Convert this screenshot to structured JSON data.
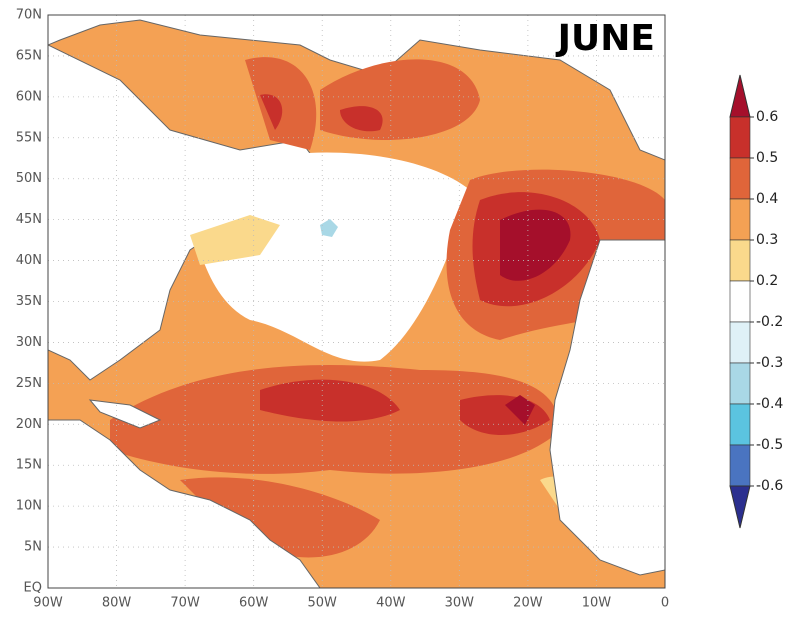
{
  "title": "JUNE",
  "lat_labels": [
    "70N",
    "65N",
    "60N",
    "55N",
    "50N",
    "45N",
    "40N",
    "35N",
    "30N",
    "25N",
    "20N",
    "15N",
    "10N",
    "5N",
    "EQ"
  ],
  "lon_labels": [
    "90W",
    "80W",
    "70W",
    "60W",
    "50W",
    "40W",
    "30W",
    "20W",
    "10W",
    "0"
  ],
  "colorbar": {
    "levels": [
      0.6,
      0.5,
      0.4,
      0.3,
      0.2,
      -0.2,
      -0.3,
      -0.4,
      -0.5,
      -0.6
    ],
    "colors": [
      "#a50f2b",
      "#c8302b",
      "#e0653a",
      "#f4a154",
      "#fad98c",
      "#ffffff",
      "#dff1f7",
      "#a9d8e6",
      "#5bc4e0",
      "#4a74c0",
      "#2b2f8f"
    ]
  }
}
